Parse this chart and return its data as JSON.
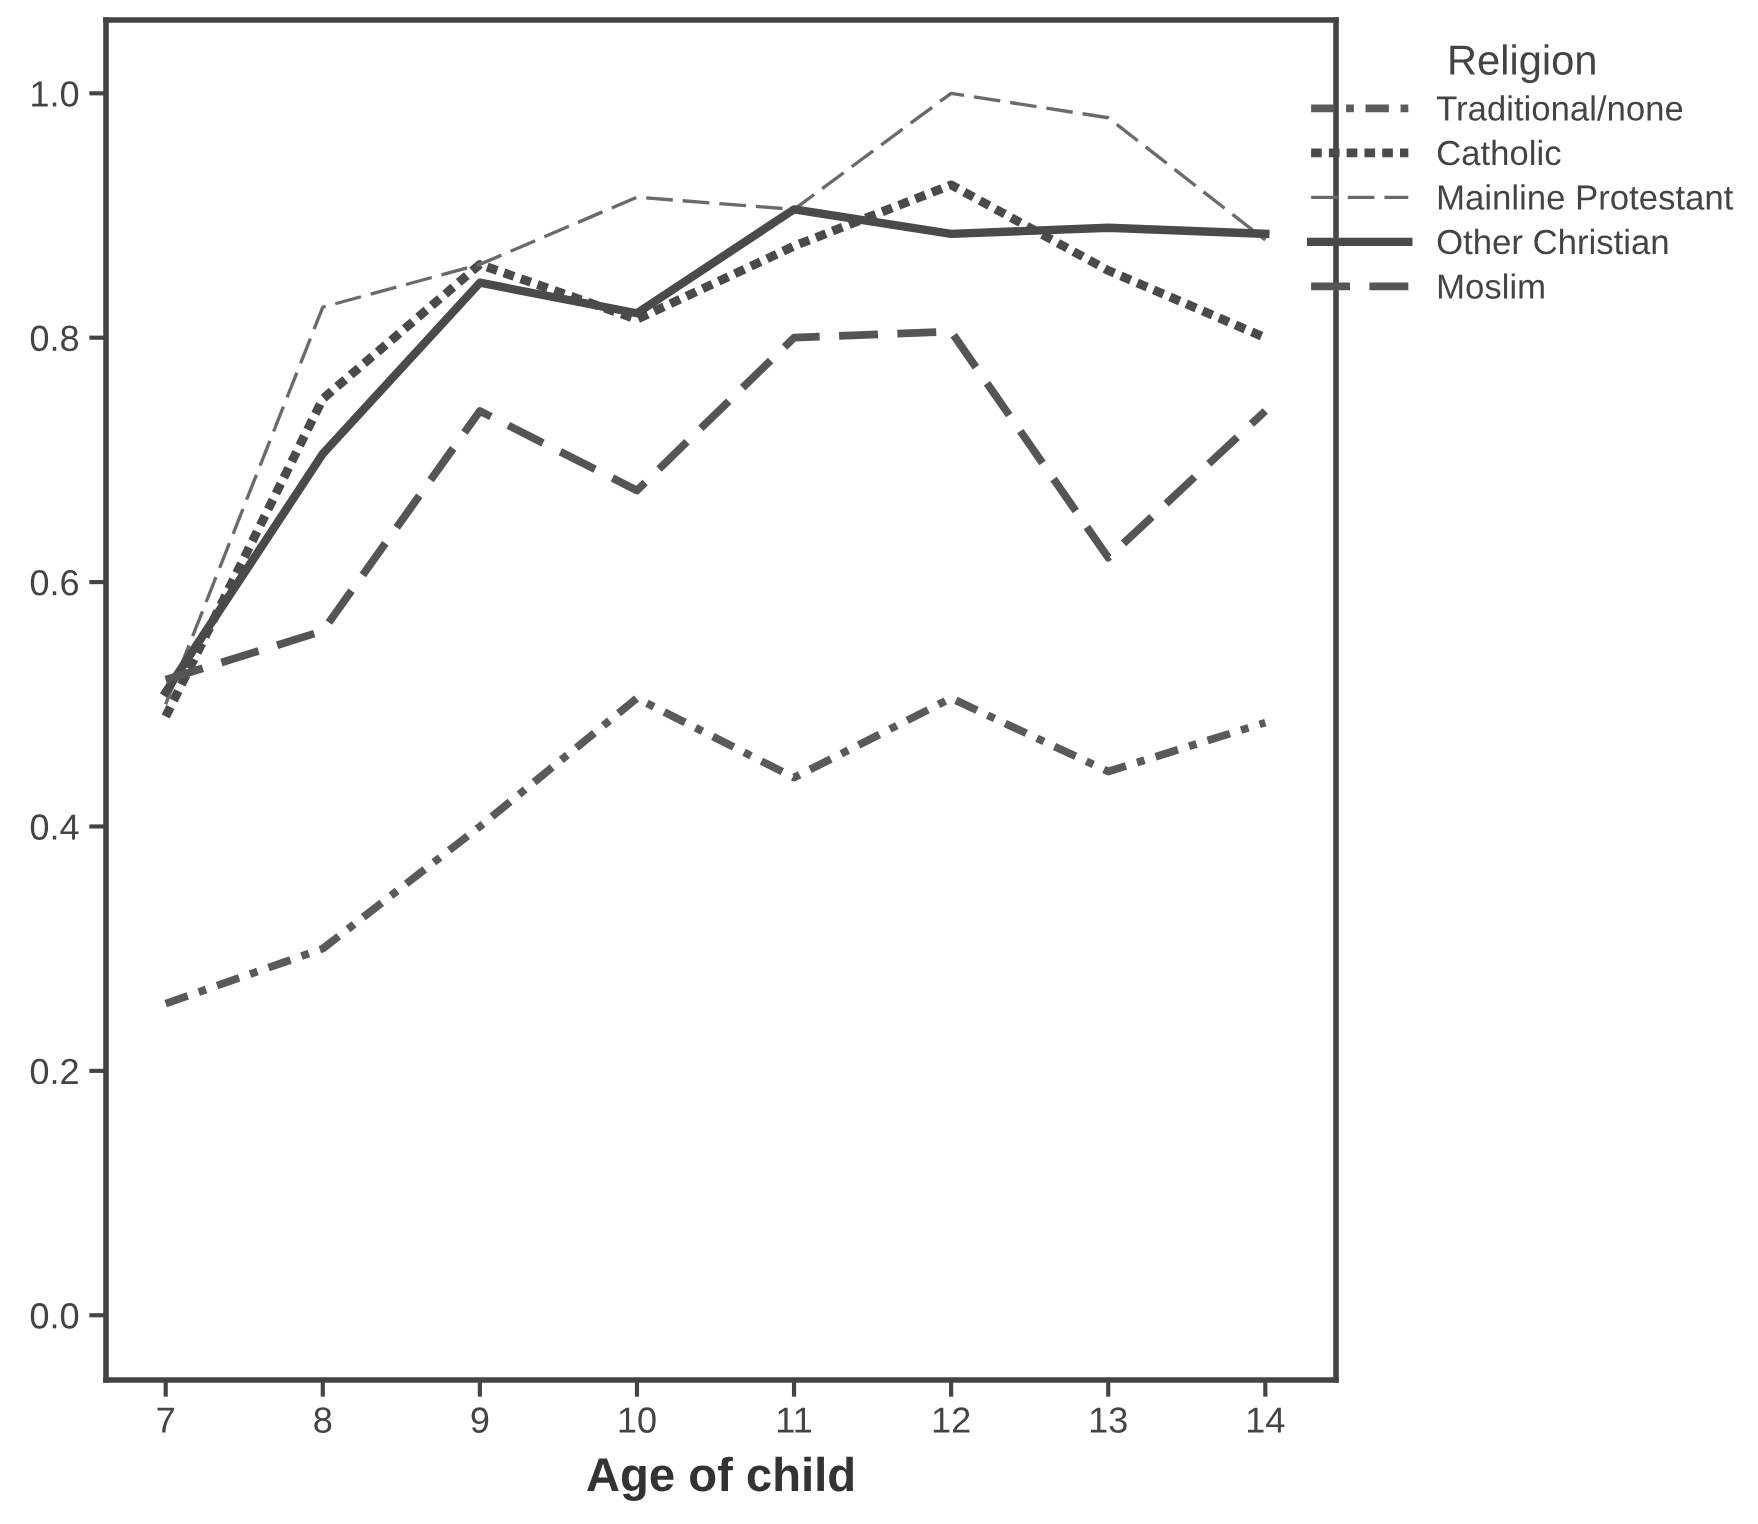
{
  "chart_data": {
    "type": "line",
    "xlabel": "Age of child",
    "legend_title": "Religion",
    "legend": "top right",
    "x": [
      7,
      8,
      9,
      10,
      11,
      12,
      13,
      14
    ],
    "xlim": [
      6.62,
      14.45
    ],
    "xticks": [
      7,
      8,
      9,
      10,
      11,
      12,
      13,
      14
    ],
    "ylim": [
      -0.053,
      1.06
    ],
    "yticks": [
      {
        "value": 0,
        "label": "0.0"
      },
      {
        "value": 0.2,
        "label": "0.2"
      },
      {
        "value": 0.4,
        "label": "0.4"
      },
      {
        "value": 0.6,
        "label": "0.6"
      },
      {
        "value": 0.8,
        "label": "0.8"
      },
      {
        "value": 1.0,
        "label": "1.0"
      }
    ],
    "grid": false,
    "marker": "none",
    "series": [
      {
        "name": "Traditional/none",
        "color": "#5a5a5a",
        "line_style": "dashdot",
        "values": [
          0.255,
          0.3,
          0.4,
          0.505,
          0.44,
          0.505,
          0.445,
          0.485
        ]
      },
      {
        "name": "Catholic",
        "color": "#4a4a4a",
        "line_style": "dotted",
        "values": [
          0.49,
          0.75,
          0.86,
          0.815,
          0.875,
          0.925,
          0.855,
          0.8
        ]
      },
      {
        "name": "Mainline Protestant",
        "color": "#6a6a6a",
        "line_style": "dashed",
        "values": [
          0.5,
          0.825,
          0.86,
          0.915,
          0.905,
          1.0,
          0.98,
          0.88
        ]
      },
      {
        "name": "Other Christian",
        "color": "#4a4a4a",
        "line_style": "solid",
        "values": [
          0.51,
          0.705,
          0.845,
          0.82,
          0.905,
          0.885,
          0.89,
          0.885
        ]
      },
      {
        "name": "Moslim",
        "color": "#555555",
        "line_style": "dashed",
        "values": [
          0.52,
          0.56,
          0.74,
          0.675,
          0.8,
          0.805,
          0.62,
          0.74
        ]
      }
    ]
  }
}
